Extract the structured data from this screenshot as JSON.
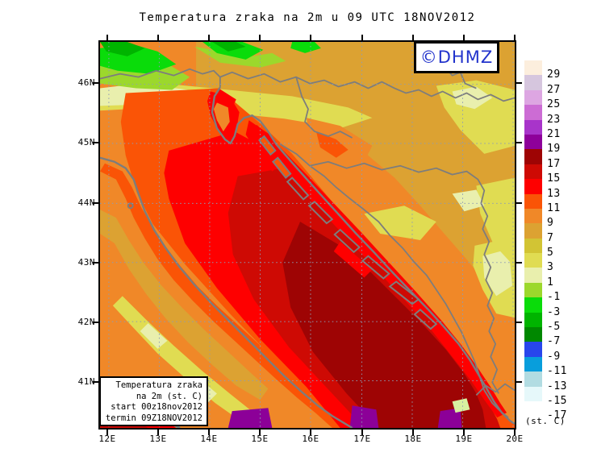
{
  "title": "Temperatura zraka na 2m u 09 UTC 18NOV2012",
  "logo": {
    "text": "©DHMZ",
    "color": "#2233cc"
  },
  "axes": {
    "lat_labels": [
      "46N",
      "45N",
      "44N",
      "43N",
      "42N",
      "41N"
    ],
    "lon_labels": [
      "12E",
      "13E",
      "14E",
      "15E",
      "16E",
      "17E",
      "18E",
      "19E",
      "20E"
    ]
  },
  "info_box": {
    "lines": [
      "Temperatura zraka",
      "na 2m (st. C)",
      "start 00z18nov2012",
      "termin 09Z18NOV2012"
    ]
  },
  "colorbar": {
    "unit_label": "(st. C)",
    "entries": [
      {
        "label": "29",
        "color": "#fceedd"
      },
      {
        "label": "27",
        "color": "#d6c6de"
      },
      {
        "label": "25",
        "color": "#dda6e2"
      },
      {
        "label": "23",
        "color": "#cc6cd4"
      },
      {
        "label": "21",
        "color": "#a834ca"
      },
      {
        "label": "19",
        "color": "#8e009a"
      },
      {
        "label": "17",
        "color": "#9e0404"
      },
      {
        "label": "15",
        "color": "#ce0a04"
      },
      {
        "label": "13",
        "color": "#fe0000"
      },
      {
        "label": "11",
        "color": "#fa5406"
      },
      {
        "label": "9",
        "color": "#f08828"
      },
      {
        "label": "7",
        "color": "#dca232"
      },
      {
        "label": "5",
        "color": "#d2c434"
      },
      {
        "label": "3",
        "color": "#e0dc52"
      },
      {
        "label": "1",
        "color": "#e9efad"
      },
      {
        "label": "-1",
        "color": "#9cd82c"
      },
      {
        "label": "-3",
        "color": "#0adc0a"
      },
      {
        "label": "-5",
        "color": "#00b400"
      },
      {
        "label": "-7",
        "color": "#008800"
      },
      {
        "label": "-9",
        "color": "#2846ec"
      },
      {
        "label": "-11",
        "color": "#089edc"
      },
      {
        "label": "-13",
        "color": "#b2dce2"
      },
      {
        "label": "-15",
        "color": "#e6f8fa"
      },
      {
        "label": "-17",
        "color": "#ffffff"
      }
    ]
  }
}
